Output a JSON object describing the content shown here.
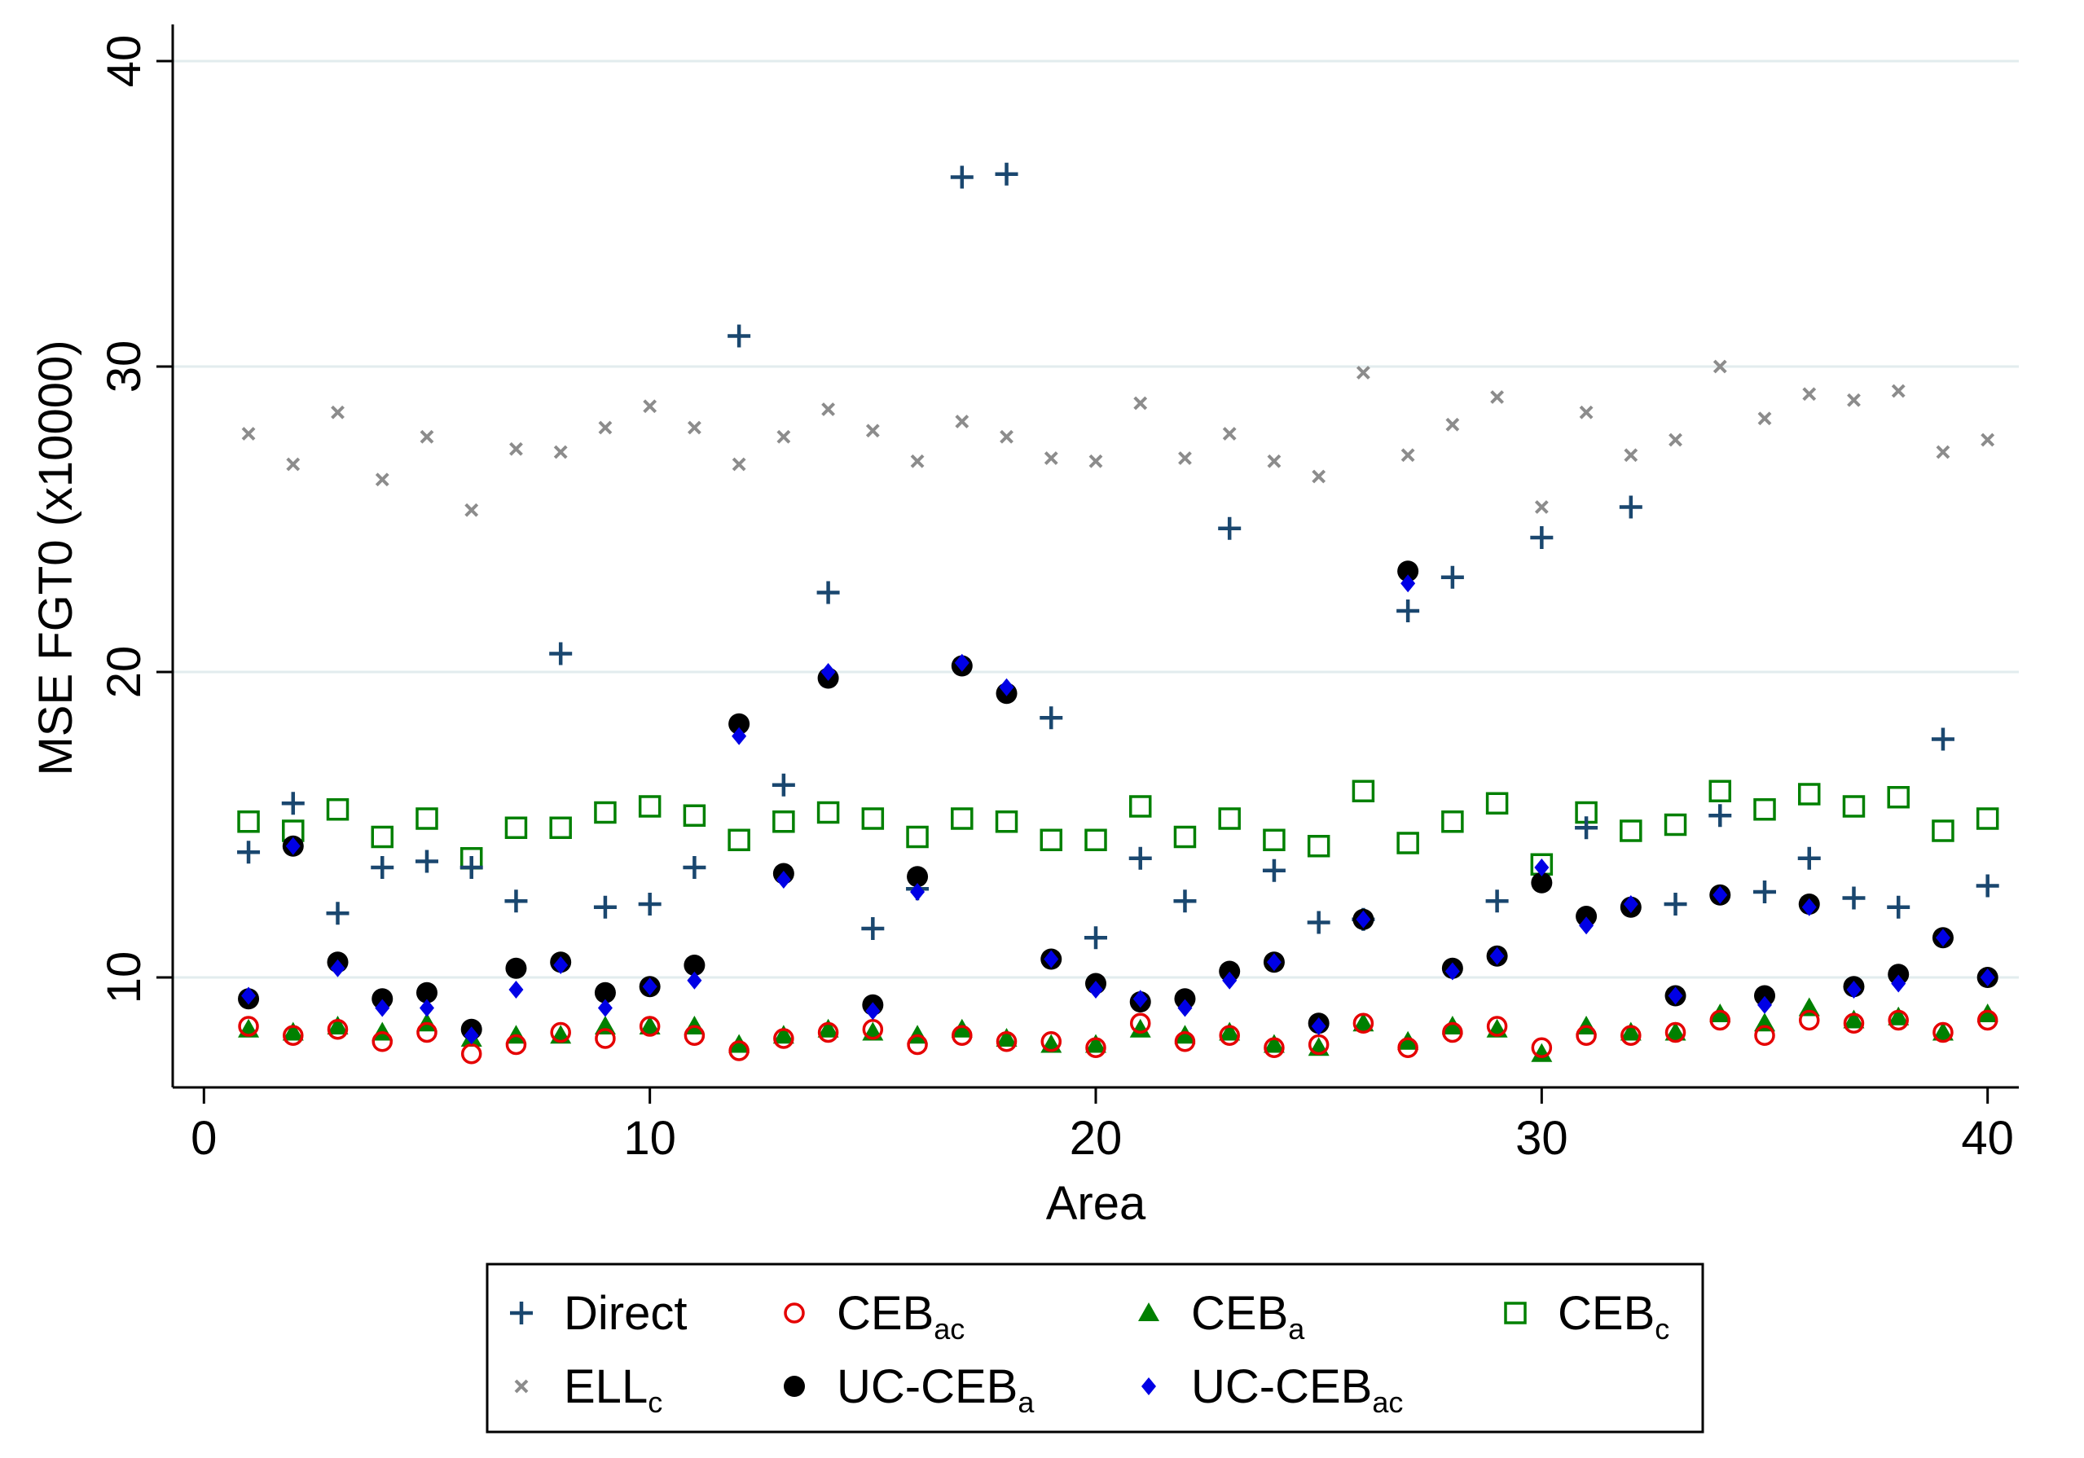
{
  "chart_data": {
    "type": "scatter",
    "title": "",
    "xlabel": "Area",
    "ylabel": "MSE FGT0 (x10000)",
    "xlim": [
      -0.7,
      40.7
    ],
    "ylim": [
      6.4,
      41.2
    ],
    "xticks": [
      0,
      10,
      20,
      30,
      40
    ],
    "yticks": [
      10,
      20,
      30,
      40
    ],
    "grid": true,
    "legend_position": "bottom",
    "x": [
      1,
      2,
      3,
      4,
      5,
      6,
      7,
      8,
      9,
      10,
      11,
      12,
      13,
      14,
      15,
      16,
      17,
      18,
      19,
      20,
      21,
      22,
      23,
      24,
      25,
      26,
      27,
      28,
      29,
      30,
      31,
      32,
      33,
      34,
      35,
      36,
      37,
      38,
      39,
      40
    ],
    "series": [
      {
        "name": "Direct",
        "base": "Direct",
        "sub": "",
        "marker": "plus",
        "color": "#1a476f",
        "values": [
          14.1,
          15.7,
          12.1,
          13.6,
          13.8,
          13.6,
          12.5,
          20.6,
          12.3,
          12.4,
          13.6,
          31.0,
          16.3,
          22.6,
          11.6,
          12.9,
          36.2,
          36.3,
          18.5,
          11.3,
          13.9,
          12.5,
          24.7,
          13.5,
          11.8,
          11.9,
          22.0,
          23.1,
          12.5,
          24.4,
          14.9,
          25.4,
          12.4,
          15.3,
          12.8,
          13.9,
          12.6,
          12.3,
          17.8,
          13.0
        ]
      },
      {
        "name": "CEBac",
        "base": "CEB",
        "sub": "ac",
        "marker": "circle-open",
        "color": "#e50000",
        "values": [
          8.4,
          8.1,
          8.3,
          7.9,
          8.2,
          7.5,
          7.8,
          8.2,
          8.0,
          8.4,
          8.1,
          7.6,
          8.0,
          8.2,
          8.3,
          7.8,
          8.1,
          7.9,
          7.9,
          7.7,
          8.5,
          7.9,
          8.1,
          7.7,
          7.8,
          8.5,
          7.7,
          8.2,
          8.4,
          7.7,
          8.1,
          8.1,
          8.2,
          8.6,
          8.1,
          8.6,
          8.5,
          8.6,
          8.2,
          8.6
        ]
      },
      {
        "name": "CEBa",
        "base": "CEB",
        "sub": "a",
        "marker": "triangle",
        "color": "#008000",
        "values": [
          8.3,
          8.2,
          8.4,
          8.2,
          8.5,
          8.0,
          8.1,
          8.1,
          8.4,
          8.4,
          8.4,
          7.8,
          8.1,
          8.3,
          8.2,
          8.1,
          8.3,
          8.0,
          7.8,
          7.8,
          8.3,
          8.1,
          8.2,
          7.8,
          7.7,
          8.5,
          7.9,
          8.4,
          8.3,
          7.5,
          8.4,
          8.2,
          8.2,
          8.8,
          8.5,
          9.0,
          8.6,
          8.7,
          8.2,
          8.8
        ]
      },
      {
        "name": "CEBc",
        "base": "CEB",
        "sub": "c",
        "marker": "square-open",
        "color": "#008000",
        "values": [
          15.1,
          14.8,
          15.5,
          14.6,
          15.2,
          13.9,
          14.9,
          14.9,
          15.4,
          15.6,
          15.3,
          14.5,
          15.1,
          15.4,
          15.2,
          14.6,
          15.2,
          15.1,
          14.5,
          14.5,
          15.6,
          14.6,
          15.2,
          14.5,
          14.3,
          16.1,
          14.4,
          15.1,
          15.7,
          13.7,
          15.4,
          14.8,
          15.0,
          16.1,
          15.5,
          16.0,
          15.6,
          15.9,
          14.8,
          15.2
        ]
      },
      {
        "name": "ELLc",
        "base": "ELL",
        "sub": "c",
        "marker": "x",
        "color": "#8c8c8c",
        "values": [
          27.8,
          26.8,
          28.5,
          26.3,
          27.7,
          25.3,
          27.3,
          27.2,
          28.0,
          28.7,
          28.0,
          26.8,
          27.7,
          28.6,
          27.9,
          26.9,
          28.2,
          27.7,
          27.0,
          26.9,
          28.8,
          27.0,
          27.8,
          26.9,
          26.4,
          29.8,
          27.1,
          28.1,
          29.0,
          25.4,
          28.5,
          27.1,
          27.6,
          30.0,
          28.3,
          29.1,
          28.9,
          29.2,
          27.2,
          27.6
        ]
      },
      {
        "name": "UC-CEBa",
        "base": "UC-CEB",
        "sub": "a",
        "marker": "circle",
        "color": "#000000",
        "values": [
          9.3,
          14.3,
          10.5,
          9.3,
          9.5,
          8.3,
          10.3,
          10.5,
          9.5,
          9.7,
          10.4,
          18.3,
          13.4,
          19.8,
          9.1,
          13.3,
          20.2,
          19.3,
          10.6,
          9.8,
          9.2,
          9.3,
          10.2,
          10.5,
          8.5,
          11.9,
          23.3,
          10.3,
          10.7,
          13.1,
          12.0,
          12.3,
          9.4,
          12.7,
          9.4,
          12.4,
          9.7,
          10.1,
          11.3,
          10.0
        ]
      },
      {
        "name": "UC-CEBac",
        "base": "UC-CEB",
        "sub": "ac",
        "marker": "diamond",
        "color": "#0000e5",
        "values": [
          9.4,
          14.3,
          10.3,
          9.0,
          9.0,
          8.1,
          9.6,
          10.4,
          9.0,
          9.7,
          9.9,
          17.9,
          13.2,
          20.0,
          8.9,
          12.8,
          20.3,
          19.5,
          10.6,
          9.6,
          9.3,
          9.0,
          9.9,
          10.5,
          8.4,
          11.9,
          22.9,
          10.2,
          10.7,
          13.6,
          11.7,
          12.4,
          9.4,
          12.7,
          9.1,
          12.3,
          9.6,
          9.8,
          11.3,
          10.0
        ]
      }
    ]
  }
}
